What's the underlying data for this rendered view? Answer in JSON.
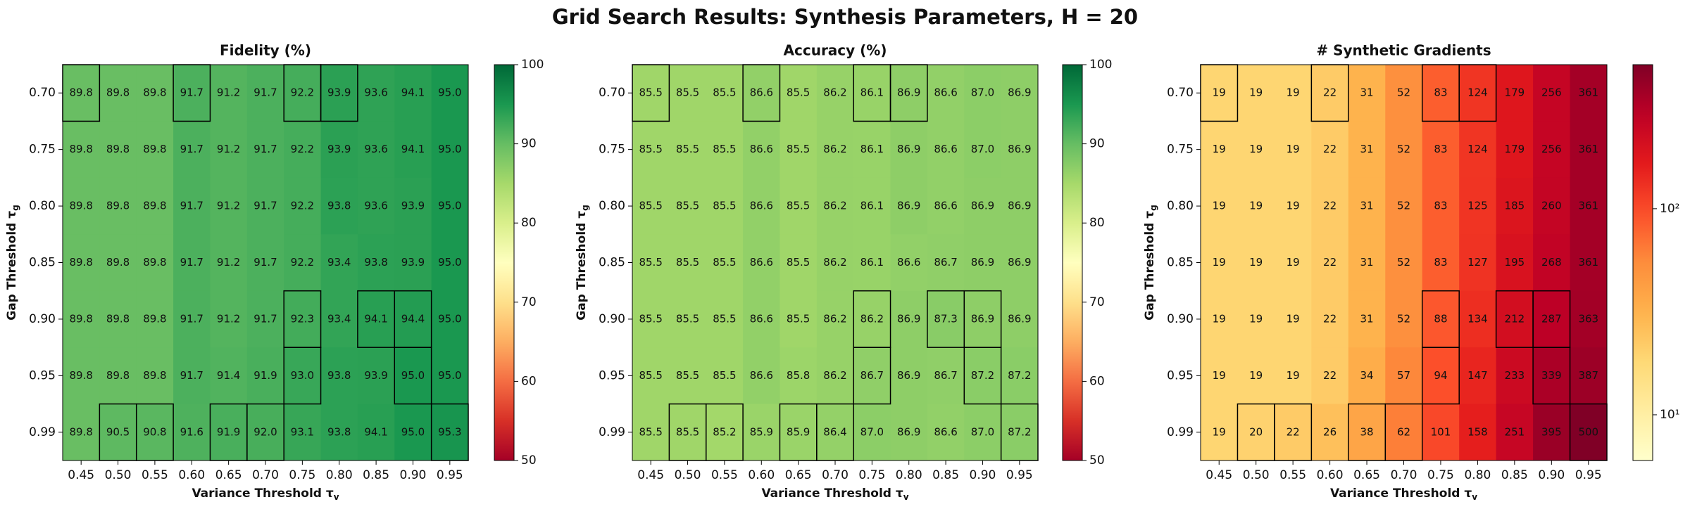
{
  "title": "Grid Search Results: Synthesis Parameters, H = 20",
  "chart_data": [
    {
      "type": "heatmap",
      "title": "Fidelity (%)",
      "x": [
        "0.45",
        "0.50",
        "0.55",
        "0.60",
        "0.65",
        "0.70",
        "0.75",
        "0.80",
        "0.85",
        "0.90",
        "0.95"
      ],
      "y": [
        "0.70",
        "0.75",
        "0.80",
        "0.85",
        "0.90",
        "0.95",
        "0.99"
      ],
      "xlabel": "Variance Threshold τv",
      "ylabel": "Gap Threshold τg",
      "values": [
        [
          89.8,
          89.8,
          89.8,
          91.7,
          91.2,
          91.7,
          92.2,
          93.9,
          93.6,
          94.1,
          95
        ],
        [
          89.8,
          89.8,
          89.8,
          91.7,
          91.2,
          91.7,
          92.2,
          93.9,
          93.6,
          94.1,
          95
        ],
        [
          89.8,
          89.8,
          89.8,
          91.7,
          91.2,
          91.7,
          92.2,
          93.8,
          93.6,
          93.9,
          95
        ],
        [
          89.8,
          89.8,
          89.8,
          91.7,
          91.2,
          91.7,
          92.2,
          93.4,
          93.8,
          93.9,
          95
        ],
        [
          89.8,
          89.8,
          89.8,
          91.7,
          91.2,
          91.7,
          92.3,
          93.4,
          94.1,
          94.4,
          95
        ],
        [
          89.8,
          89.8,
          89.8,
          91.7,
          91.4,
          91.9,
          93,
          93.8,
          93.9,
          95,
          95
        ],
        [
          89.8,
          90.5,
          90.8,
          91.6,
          91.9,
          92,
          93.1,
          93.8,
          94.1,
          95,
          95.3
        ]
      ],
      "value_labels": [
        [
          "89.8",
          "89.8",
          "89.8",
          "91.7",
          "91.2",
          "91.7",
          "92.2",
          "93.9",
          "93.6",
          "94.1",
          "95.0"
        ],
        [
          "89.8",
          "89.8",
          "89.8",
          "91.7",
          "91.2",
          "91.7",
          "92.2",
          "93.9",
          "93.6",
          "94.1",
          "95.0"
        ],
        [
          "89.8",
          "89.8",
          "89.8",
          "91.7",
          "91.2",
          "91.7",
          "92.2",
          "93.8",
          "93.6",
          "93.9",
          "95.0"
        ],
        [
          "89.8",
          "89.8",
          "89.8",
          "91.7",
          "91.2",
          "91.7",
          "92.2",
          "93.4",
          "93.8",
          "93.9",
          "95.0"
        ],
        [
          "89.8",
          "89.8",
          "89.8",
          "91.7",
          "91.2",
          "91.7",
          "92.3",
          "93.4",
          "94.1",
          "94.4",
          "95.0"
        ],
        [
          "89.8",
          "89.8",
          "89.8",
          "91.7",
          "91.4",
          "91.9",
          "93.0",
          "93.8",
          "93.9",
          "95.0",
          "95.0"
        ],
        [
          "89.8",
          "90.5",
          "90.8",
          "91.6",
          "91.9",
          "92.0",
          "93.1",
          "93.8",
          "94.1",
          "95.0",
          "95.3"
        ]
      ],
      "colormap": "RdYlGn",
      "zlim": [
        50,
        100
      ],
      "zticks": [
        50,
        60,
        70,
        80,
        90,
        100
      ],
      "highlight": [
        [
          0,
          0
        ],
        [
          0,
          3
        ],
        [
          0,
          6
        ],
        [
          0,
          7
        ],
        [
          4,
          6
        ],
        [
          4,
          8
        ],
        [
          4,
          9
        ],
        [
          5,
          6
        ],
        [
          5,
          9
        ],
        [
          6,
          1
        ],
        [
          6,
          2
        ],
        [
          6,
          4
        ],
        [
          6,
          5
        ],
        [
          6,
          10
        ]
      ]
    },
    {
      "type": "heatmap",
      "title": "Accuracy (%)",
      "x": [
        "0.45",
        "0.50",
        "0.55",
        "0.60",
        "0.65",
        "0.70",
        "0.75",
        "0.80",
        "0.85",
        "0.90",
        "0.95"
      ],
      "y": [
        "0.70",
        "0.75",
        "0.80",
        "0.85",
        "0.90",
        "0.95",
        "0.99"
      ],
      "xlabel": "Variance Threshold τv",
      "ylabel": "Gap Threshold τg",
      "values": [
        [
          85.5,
          85.5,
          85.5,
          86.6,
          85.5,
          86.2,
          86.1,
          86.9,
          86.6,
          87,
          86.9
        ],
        [
          85.5,
          85.5,
          85.5,
          86.6,
          85.5,
          86.2,
          86.1,
          86.9,
          86.6,
          87,
          86.9
        ],
        [
          85.5,
          85.5,
          85.5,
          86.6,
          85.5,
          86.2,
          86.1,
          86.9,
          86.6,
          86.9,
          86.9
        ],
        [
          85.5,
          85.5,
          85.5,
          86.6,
          85.5,
          86.2,
          86.1,
          86.6,
          86.7,
          86.9,
          86.9
        ],
        [
          85.5,
          85.5,
          85.5,
          86.6,
          85.5,
          86.2,
          86.2,
          86.9,
          87.3,
          86.9,
          86.9
        ],
        [
          85.5,
          85.5,
          85.5,
          86.6,
          85.8,
          86.2,
          86.7,
          86.9,
          86.7,
          87.2,
          87.2
        ],
        [
          85.5,
          85.5,
          85.2,
          85.9,
          85.9,
          86.4,
          87,
          86.9,
          86.6,
          87,
          87.2
        ]
      ],
      "value_labels": [
        [
          "85.5",
          "85.5",
          "85.5",
          "86.6",
          "85.5",
          "86.2",
          "86.1",
          "86.9",
          "86.6",
          "87.0",
          "86.9"
        ],
        [
          "85.5",
          "85.5",
          "85.5",
          "86.6",
          "85.5",
          "86.2",
          "86.1",
          "86.9",
          "86.6",
          "87.0",
          "86.9"
        ],
        [
          "85.5",
          "85.5",
          "85.5",
          "86.6",
          "85.5",
          "86.2",
          "86.1",
          "86.9",
          "86.6",
          "86.9",
          "86.9"
        ],
        [
          "85.5",
          "85.5",
          "85.5",
          "86.6",
          "85.5",
          "86.2",
          "86.1",
          "86.6",
          "86.7",
          "86.9",
          "86.9"
        ],
        [
          "85.5",
          "85.5",
          "85.5",
          "86.6",
          "85.5",
          "86.2",
          "86.2",
          "86.9",
          "87.3",
          "86.9",
          "86.9"
        ],
        [
          "85.5",
          "85.5",
          "85.5",
          "86.6",
          "85.8",
          "86.2",
          "86.7",
          "86.9",
          "86.7",
          "87.2",
          "87.2"
        ],
        [
          "85.5",
          "85.5",
          "85.2",
          "85.9",
          "85.9",
          "86.4",
          "87.0",
          "86.9",
          "86.6",
          "87.0",
          "87.2"
        ]
      ],
      "colormap": "RdYlGn",
      "zlim": [
        50,
        100
      ],
      "zticks": [
        50,
        60,
        70,
        80,
        90,
        100
      ],
      "highlight": [
        [
          0,
          0
        ],
        [
          0,
          3
        ],
        [
          0,
          6
        ],
        [
          0,
          7
        ],
        [
          4,
          6
        ],
        [
          4,
          8
        ],
        [
          4,
          9
        ],
        [
          5,
          6
        ],
        [
          5,
          9
        ],
        [
          6,
          1
        ],
        [
          6,
          2
        ],
        [
          6,
          4
        ],
        [
          6,
          5
        ],
        [
          6,
          10
        ]
      ]
    },
    {
      "type": "heatmap",
      "title": "# Synthetic Gradients",
      "x": [
        "0.45",
        "0.50",
        "0.55",
        "0.60",
        "0.65",
        "0.70",
        "0.75",
        "0.80",
        "0.85",
        "0.90",
        "0.95"
      ],
      "y": [
        "0.70",
        "0.75",
        "0.80",
        "0.85",
        "0.90",
        "0.95",
        "0.99"
      ],
      "xlabel": "Variance Threshold τv",
      "ylabel": "Gap Threshold τg",
      "values": [
        [
          19,
          19,
          19,
          22,
          31,
          52,
          83,
          124,
          179,
          256,
          361
        ],
        [
          19,
          19,
          19,
          22,
          31,
          52,
          83,
          124,
          179,
          256,
          361
        ],
        [
          19,
          19,
          19,
          22,
          31,
          52,
          83,
          125,
          185,
          260,
          361
        ],
        [
          19,
          19,
          19,
          22,
          31,
          52,
          83,
          127,
          195,
          268,
          361
        ],
        [
          19,
          19,
          19,
          22,
          31,
          52,
          88,
          134,
          212,
          287,
          363
        ],
        [
          19,
          19,
          19,
          22,
          34,
          57,
          94,
          147,
          233,
          339,
          387
        ],
        [
          19,
          20,
          22,
          26,
          38,
          62,
          101,
          158,
          251,
          395,
          500
        ]
      ],
      "colormap": "YlOrRd",
      "zscale": "log",
      "zlim": [
        6,
        500
      ],
      "zticks": [
        {
          "value": 10,
          "label": "10¹"
        },
        {
          "value": 100,
          "label": "10²"
        }
      ],
      "highlight": [
        [
          0,
          0
        ],
        [
          0,
          3
        ],
        [
          0,
          6
        ],
        [
          0,
          7
        ],
        [
          4,
          6
        ],
        [
          4,
          8
        ],
        [
          4,
          9
        ],
        [
          5,
          6
        ],
        [
          5,
          9
        ],
        [
          6,
          1
        ],
        [
          6,
          2
        ],
        [
          6,
          4
        ],
        [
          6,
          5
        ],
        [
          6,
          10
        ]
      ]
    }
  ]
}
